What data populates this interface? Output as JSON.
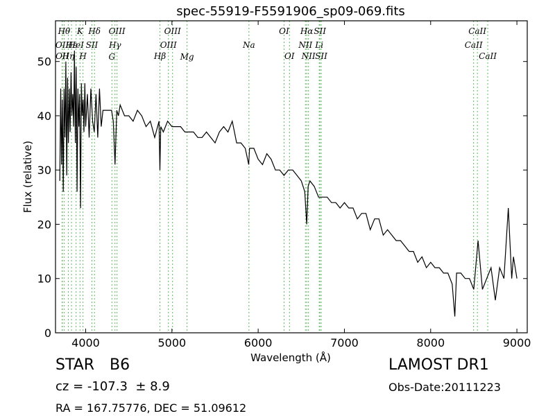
{
  "chart_data": {
    "type": "line",
    "title": "spec-55919-F5591906_sp09-069.fits",
    "xlabel": "Wavelength (Å)",
    "ylabel": "Flux (relative)",
    "xlim": [
      3650,
      9120
    ],
    "ylim": [
      0,
      57.5
    ],
    "xticks": [
      4000,
      5000,
      6000,
      7000,
      8000,
      9000
    ],
    "yticks": [
      0,
      10,
      20,
      30,
      40,
      50
    ],
    "grid": false,
    "series": [
      {
        "color": "#000000",
        "x": [
          3700,
          3710,
          3720,
          3730,
          3740,
          3750,
          3760,
          3770,
          3780,
          3790,
          3800,
          3810,
          3820,
          3830,
          3840,
          3850,
          3860,
          3870,
          3880,
          3890,
          3900,
          3910,
          3920,
          3930,
          3940,
          3950,
          3960,
          3970,
          3980,
          3990,
          4000,
          4020,
          4040,
          4060,
          4080,
          4100,
          4120,
          4140,
          4160,
          4180,
          4200,
          4250,
          4300,
          4320,
          4340,
          4360,
          4380,
          4400,
          4450,
          4500,
          4550,
          4600,
          4650,
          4700,
          4750,
          4800,
          4850,
          4861,
          4870,
          4900,
          4950,
          5000,
          5050,
          5100,
          5150,
          5200,
          5250,
          5300,
          5350,
          5400,
          5450,
          5500,
          5550,
          5600,
          5650,
          5700,
          5750,
          5800,
          5850,
          5890,
          5900,
          5950,
          6000,
          6050,
          6100,
          6150,
          6200,
          6250,
          6300,
          6350,
          6400,
          6450,
          6500,
          6540,
          6563,
          6580,
          6600,
          6650,
          6700,
          6750,
          6800,
          6850,
          6900,
          6950,
          7000,
          7050,
          7100,
          7150,
          7200,
          7250,
          7300,
          7350,
          7400,
          7450,
          7500,
          7550,
          7600,
          7650,
          7700,
          7750,
          7800,
          7850,
          7900,
          7950,
          8000,
          8050,
          8100,
          8150,
          8200,
          8250,
          8280,
          8300,
          8350,
          8400,
          8450,
          8500,
          8550,
          8600,
          8650,
          8700,
          8750,
          8800,
          8850,
          8900,
          8940,
          8960,
          9000
        ],
        "y": [
          28,
          45,
          31,
          43,
          26,
          45,
          36,
          50,
          29,
          47,
          35,
          45,
          37,
          48,
          40,
          44,
          38,
          52,
          35,
          49,
          26,
          45,
          38,
          44,
          23,
          46,
          40,
          43,
          37,
          46,
          38,
          44,
          36,
          45,
          39,
          37,
          44,
          36,
          45,
          38,
          41,
          41,
          41,
          39,
          31,
          41,
          40,
          42,
          40,
          40,
          39,
          41,
          40,
          38,
          39,
          36,
          39,
          30,
          38,
          37,
          39,
          38,
          38,
          38,
          37,
          37,
          37,
          36,
          36,
          37,
          36,
          35,
          37,
          38,
          37,
          39,
          35,
          35,
          34,
          31,
          34,
          34,
          32,
          31,
          33,
          32,
          30,
          30,
          29,
          30,
          30,
          29,
          28,
          26,
          20,
          27,
          28,
          27,
          25,
          25,
          25,
          24,
          24,
          23,
          24,
          23,
          23,
          21,
          22,
          22,
          19,
          21,
          21,
          18,
          19,
          18,
          17,
          17,
          16,
          15,
          15,
          13,
          14,
          12,
          13,
          12,
          12,
          11,
          11,
          9,
          3,
          11,
          11,
          10,
          10,
          8,
          17,
          8,
          10,
          12,
          6,
          12,
          10,
          23,
          10,
          14,
          10
        ]
      }
    ],
    "line_markers": [
      {
        "x": 3727,
        "label": "OII",
        "tier": 2
      },
      {
        "x": 3729,
        "label": "OII",
        "tier": 3
      },
      {
        "x": 3750,
        "label": "Hθ",
        "tier": 0
      },
      {
        "x": 3798,
        "label": "Hη",
        "tier": 3
      },
      {
        "x": 3835,
        "label": "Hε",
        "tier": 2
      },
      {
        "x": 3889,
        "label": "HeI",
        "tier": 2
      },
      {
        "x": 3934,
        "label": "K",
        "tier": 0
      },
      {
        "x": 3969,
        "label": "H",
        "tier": 3
      },
      {
        "x": 4072,
        "label": "SII",
        "tier": 2
      },
      {
        "x": 4102,
        "label": "Hδ",
        "tier": 0
      },
      {
        "x": 4304,
        "label": "G",
        "tier": 4
      },
      {
        "x": 4340,
        "label": "Hγ",
        "tier": 2
      },
      {
        "x": 4363,
        "label": "OIII",
        "tier": 0
      },
      {
        "x": 4861,
        "label": "Hβ",
        "tier": 3
      },
      {
        "x": 4959,
        "label": "OIII",
        "tier": 2
      },
      {
        "x": 5007,
        "label": "OIII",
        "tier": 0
      },
      {
        "x": 5175,
        "label": "Mg",
        "tier": 4
      },
      {
        "x": 5893,
        "label": "Na",
        "tier": 2
      },
      {
        "x": 6300,
        "label": "OI",
        "tier": 0
      },
      {
        "x": 6363,
        "label": "OI",
        "tier": 3
      },
      {
        "x": 6548,
        "label": "NII",
        "tier": 2
      },
      {
        "x": 6563,
        "label": "Hα",
        "tier": 0
      },
      {
        "x": 6583,
        "label": "NII",
        "tier": 3
      },
      {
        "x": 6708,
        "label": "Li",
        "tier": 2
      },
      {
        "x": 6716,
        "label": "SII",
        "tier": 0
      },
      {
        "x": 6731,
        "label": "SII",
        "tier": 3
      },
      {
        "x": 8498,
        "label": "CaII",
        "tier": 2
      },
      {
        "x": 8542,
        "label": "CaII",
        "tier": 0
      },
      {
        "x": 8662,
        "label": "CaII",
        "tier": 3
      }
    ],
    "marker_color": "#5cb85c"
  },
  "info": {
    "class_label": "STAR",
    "subclass": "B6",
    "cz_text": "cz = -107.3  ± 8.9",
    "survey": "LAMOST DR1",
    "obs_date": "Obs-Date:20111223",
    "coords": "RA = 167.75776, DEC = 51.09612"
  }
}
